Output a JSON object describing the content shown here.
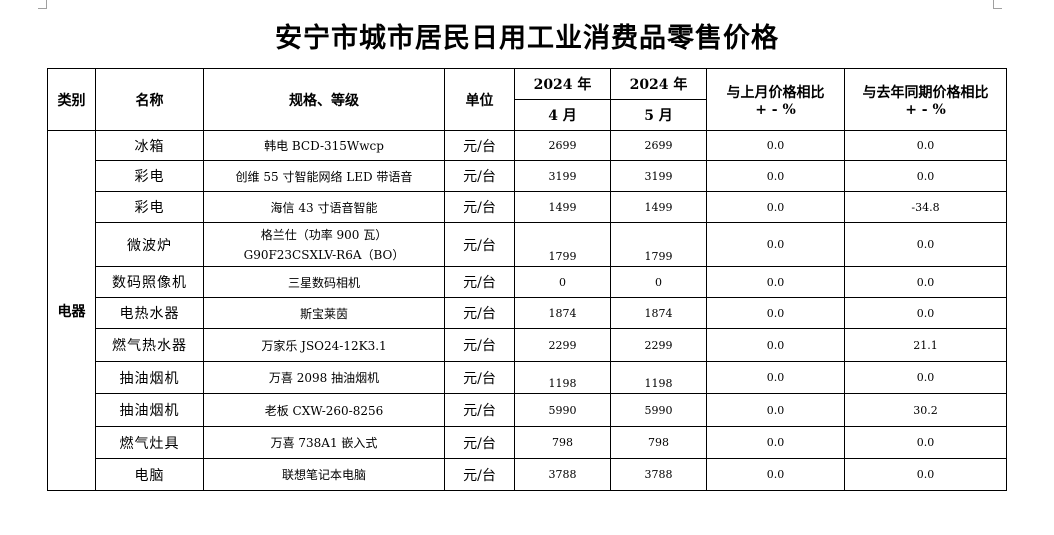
{
  "title": "安宁市城市居民日用工业消费品零售价格",
  "headers": {
    "category": "类别",
    "name": "名称",
    "spec": "规格、等级",
    "unit": "单位",
    "year1": "2024 年",
    "month1": "4 月",
    "year2": "2024 年",
    "month2": "5 月",
    "mom": "与上月价格相比",
    "mom_unit": "+ - %",
    "yoy": "与去年同期价格相比",
    "yoy_unit": "+ - %"
  },
  "category": "电器",
  "rows": [
    {
      "name": "冰箱",
      "spec": "韩电 BCD-315Wwcp",
      "unit": "元/台",
      "apr": "2699",
      "may": "2699",
      "mom": "0.0",
      "yoy": "0.0"
    },
    {
      "name": "彩电",
      "spec": "创维 55 寸智能网络 LED 带语音",
      "unit": "元/台",
      "apr": "3199",
      "may": "3199",
      "mom": "0.0",
      "yoy": "0.0"
    },
    {
      "name": "彩电",
      "spec": "海信 43 寸语音智能",
      "unit": "元/台",
      "apr": "1499",
      "may": "1499",
      "mom": "0.0",
      "yoy": "-34.8"
    },
    {
      "name": "微波炉",
      "spec": "格兰仕（功率 900 瓦）",
      "spec2": "G90F23CSXLV-R6A（BO）",
      "unit": "元/台",
      "apr": "1799",
      "may": "1799",
      "mom": "0.0",
      "yoy": "0.0"
    },
    {
      "name": "数码照像机",
      "spec": "三星数码相机",
      "unit": "元/台",
      "apr": "0",
      "may": "0",
      "mom": "0.0",
      "yoy": "0.0"
    },
    {
      "name": "电热水器",
      "spec": "斯宝莱茵",
      "unit": "元/台",
      "apr": "1874",
      "may": "1874",
      "mom": "0.0",
      "yoy": "0.0"
    },
    {
      "name": "燃气热水器",
      "spec": "万家乐 JSO24-12K3.1",
      "unit": "元/台",
      "apr": "2299",
      "may": "2299",
      "mom": "0.0",
      "yoy": "21.1"
    },
    {
      "name": "抽油烟机",
      "spec": "万喜 2098 抽油烟机",
      "unit": "元/台",
      "apr": "1198",
      "may": "1198",
      "mom": "0.0",
      "yoy": "0.0"
    },
    {
      "name": "抽油烟机",
      "spec": "老板 CXW-260-8256",
      "unit": "元/台",
      "apr": "5990",
      "may": "5990",
      "mom": "0.0",
      "yoy": "30.2"
    },
    {
      "name": "燃气灶具",
      "spec": "万喜 738A1 嵌入式",
      "unit": "元/台",
      "apr": "798",
      "may": "798",
      "mom": "0.0",
      "yoy": "0.0"
    },
    {
      "name": "电脑",
      "spec": "联想笔记本电脑",
      "unit": "元/台",
      "apr": "3788",
      "may": "3788",
      "mom": "0.0",
      "yoy": "0.0"
    }
  ]
}
